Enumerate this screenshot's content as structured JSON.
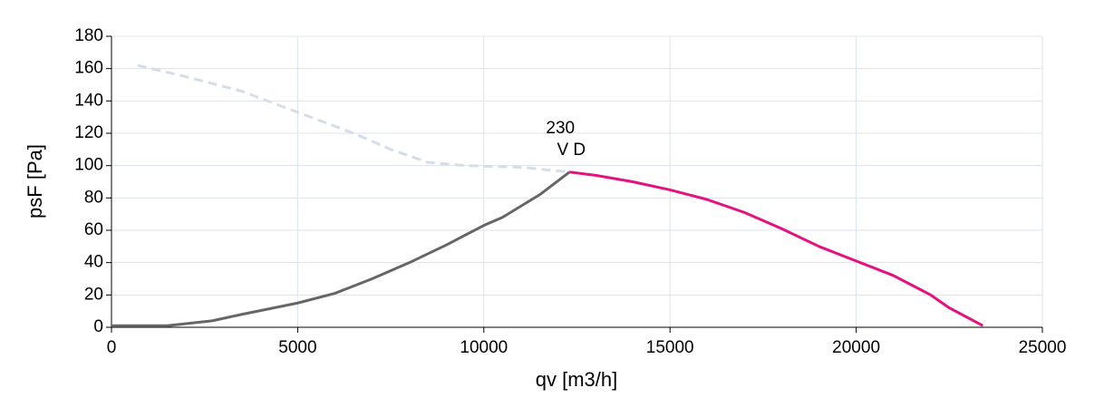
{
  "chart_data": {
    "type": "line",
    "xlabel": "qv [m3/h]",
    "ylabel": "psF [Pa]",
    "xlim": [
      0,
      25000
    ],
    "xticks": [
      0,
      5000,
      10000,
      15000,
      20000,
      25000
    ],
    "ylim": [
      0,
      180
    ],
    "yticks": [
      0,
      20,
      40,
      60,
      80,
      100,
      120,
      140,
      160,
      180
    ],
    "grid": true,
    "series": [
      {
        "color": "#d5dde8",
        "style": "dashed",
        "x": [
          700,
          2000,
          3500,
          5000,
          6500,
          7500,
          8500,
          9500,
          11000,
          12300
        ],
        "values": [
          162,
          155,
          146,
          133,
          120,
          110,
          102,
          100,
          99,
          96
        ]
      },
      {
        "color": "#666666",
        "style": "solid",
        "x": [
          0,
          1500,
          2700,
          3500,
          5000,
          6000,
          7000,
          8000,
          9000,
          10000,
          10500,
          11500,
          12300
        ],
        "values": [
          1,
          1,
          4,
          8,
          15,
          21,
          30,
          40,
          51,
          63,
          68,
          82,
          96
        ]
      },
      {
        "color": "#e3127e",
        "style": "solid",
        "x": [
          12300,
          13000,
          14000,
          15000,
          16000,
          17000,
          18000,
          19000,
          20000,
          21000,
          22000,
          22500,
          23400
        ],
        "values": [
          96,
          94,
          90,
          85,
          79,
          71,
          61,
          50,
          41,
          32,
          20,
          12,
          1
        ]
      }
    ],
    "annotations": [
      "230",
      "V D"
    ],
    "annotation_color": "#e3127e"
  }
}
